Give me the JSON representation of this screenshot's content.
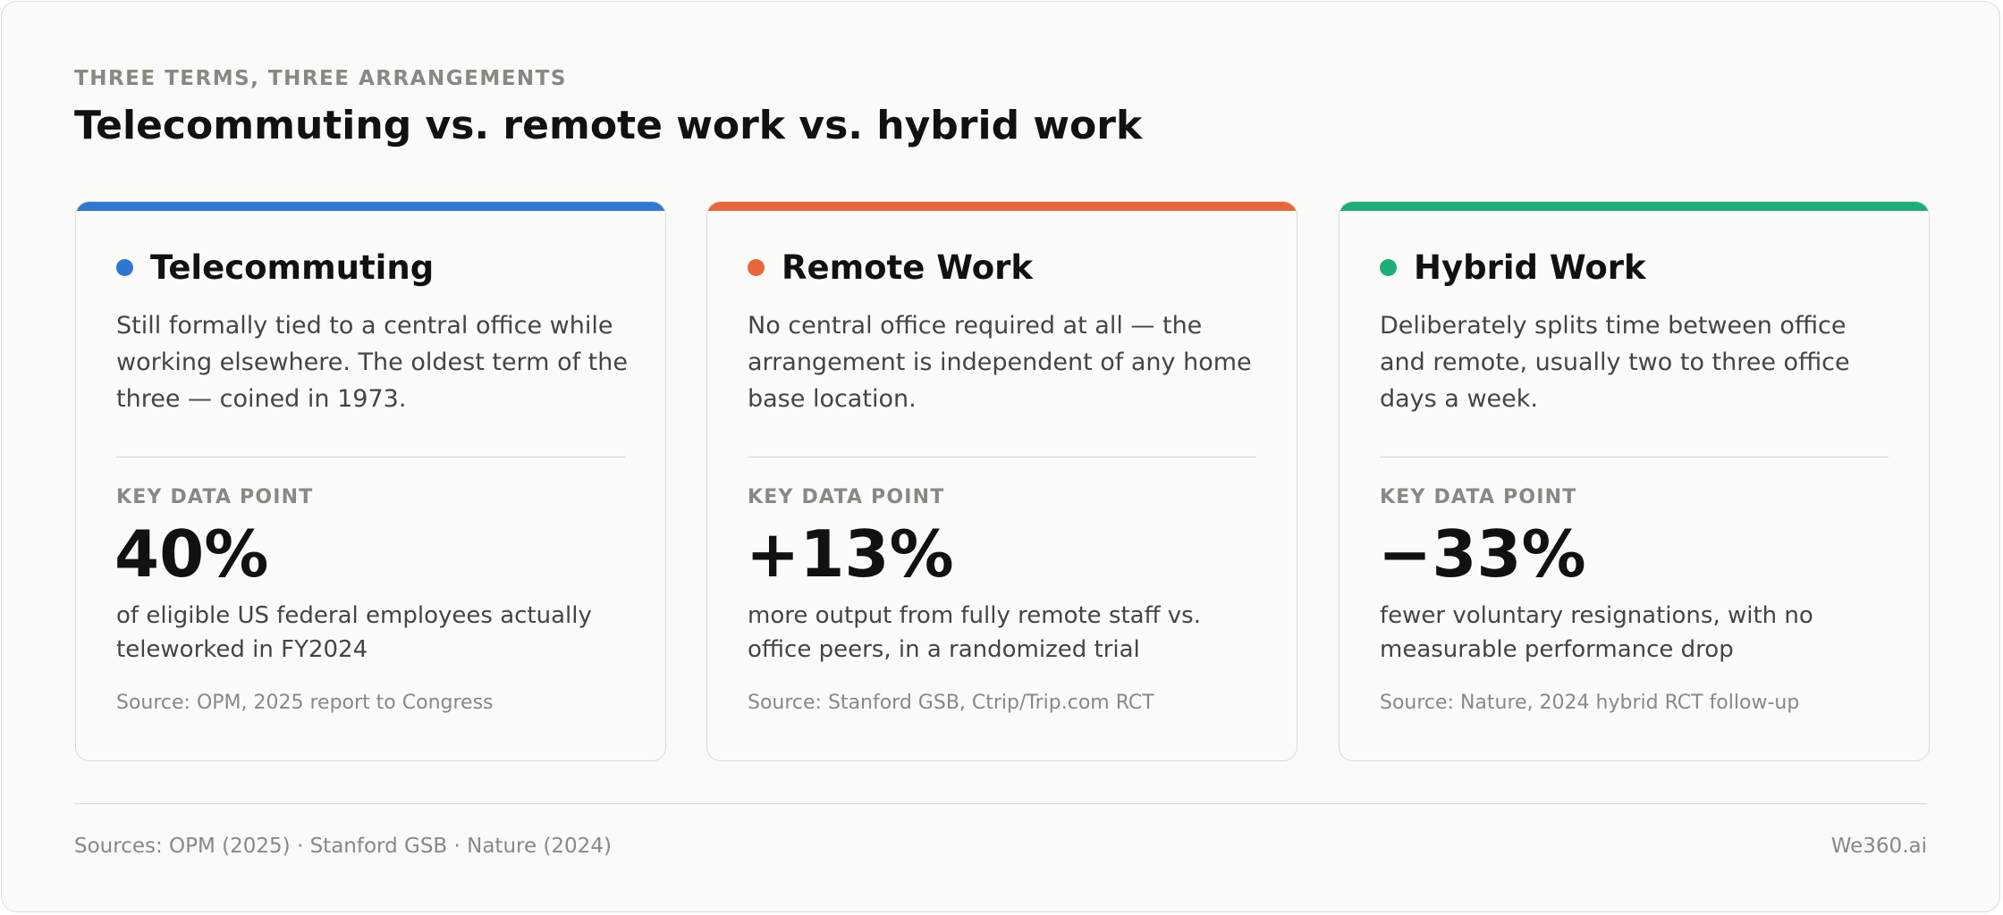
{
  "header": {
    "eyebrow": "THREE TERMS, THREE ARRANGEMENTS",
    "title": "Telecommuting vs. remote work vs. hybrid work"
  },
  "cards": [
    {
      "title": "Telecommuting",
      "description": "Still formally tied to a central office while working elsewhere. The oldest term of the three — coined in 1973.",
      "stat_label": "KEY DATA POINT",
      "stat": "40%",
      "stat_caption": "of eligible US federal employees actually teleworked in FY2024",
      "source": "Source: OPM, 2025 report to Congress"
    },
    {
      "title": "Remote Work",
      "description": "No central office required at all — the arrangement is independent of any home base location.",
      "stat_label": "KEY DATA POINT",
      "stat": "+13%",
      "stat_caption": "more output from fully remote staff vs. office peers, in a randomized trial",
      "source": "Source: Stanford GSB, Ctrip/Trip.com RCT"
    },
    {
      "title": "Hybrid Work",
      "description": "Deliberately splits time between office and remote, usually two to three office days a week.",
      "stat_label": "KEY DATA POINT",
      "stat": "−33%",
      "stat_caption": "fewer voluntary resignations, with no measurable performance drop",
      "source": "Source: Nature, 2024 hybrid RCT follow-up"
    }
  ],
  "footer": {
    "sources": "Sources: OPM (2025) · Stanford GSB · Nature (2024)",
    "brand": "We360.ai"
  }
}
